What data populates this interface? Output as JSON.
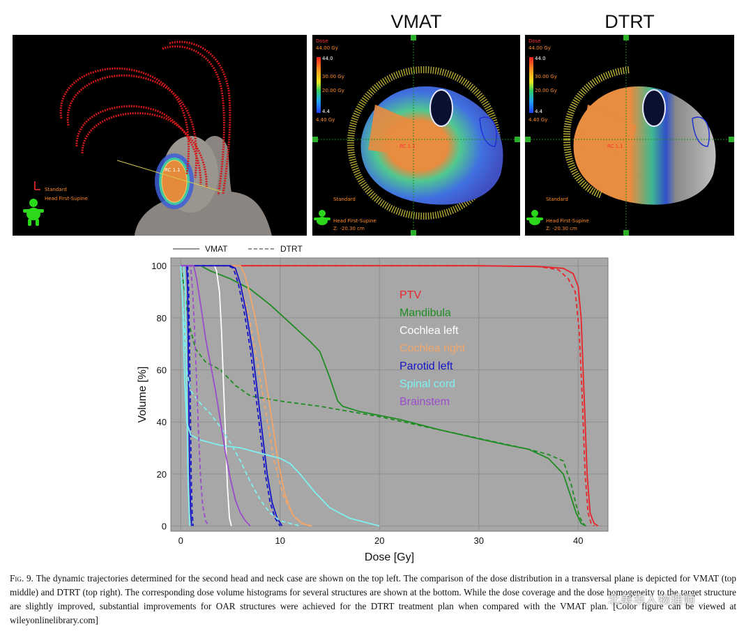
{
  "panels": {
    "vmat_title": "VMAT",
    "dtrt_title": "DTRT",
    "left": {
      "tag": "RC 1.1",
      "orientation": "Standard",
      "position": "Head First-Supine"
    },
    "vmat": {
      "dose_unit": "Dose",
      "max_box": "44.00 Gy",
      "max": "44.0",
      "level1": "30.00 Gy",
      "level2": "20.00 Gy",
      "min": "4.4",
      "min_box": "4.40 Gy",
      "tag": "RC 1.1",
      "orientation": "Standard",
      "position": "Head First-Supine",
      "z": "Z: -20.30 cm"
    },
    "dtrt": {
      "dose_unit": "Dose",
      "max_box": "44.00 Gy",
      "max": "44.0",
      "level1": "30.00 Gy",
      "level2": "20.00 Gy",
      "min": "4.4",
      "min_box": "4.40 Gy",
      "tag": "RC 1.1",
      "orientation": "Standard",
      "position": "Head First-Supine",
      "z": "Z: -20.30 cm"
    }
  },
  "chart_data": {
    "type": "line",
    "xlabel": "Dose [Gy]",
    "ylabel": "Volume [%]",
    "xlim": [
      -1,
      43
    ],
    "ylim": [
      -2,
      103
    ],
    "xticks": [
      0,
      10,
      20,
      30,
      40
    ],
    "yticks": [
      0,
      20,
      40,
      60,
      80,
      100
    ],
    "grid": true,
    "legend_top": [
      {
        "label": "VMAT",
        "style": "solid"
      },
      {
        "label": "DTRT",
        "style": "dashed"
      }
    ],
    "legend_inside": [
      {
        "label": "PTV",
        "color": "#e8252a"
      },
      {
        "label": "Mandibula",
        "color": "#1f8c23"
      },
      {
        "label": "Cochlea left",
        "color": "#ffffff"
      },
      {
        "label": "Cochlea right",
        "color": "#f2a66a"
      },
      {
        "label": "Parotid left",
        "color": "#1414c8"
      },
      {
        "label": "Spinal cord",
        "color": "#7ef0f0"
      },
      {
        "label": "Brainstem",
        "color": "#9a4ccc"
      }
    ],
    "series": [
      {
        "name": "PTV",
        "plan": "VMAT",
        "color": "#e8252a",
        "points": [
          [
            0,
            100
          ],
          [
            30,
            100
          ],
          [
            36,
            99.7
          ],
          [
            38.5,
            99
          ],
          [
            39.5,
            97
          ],
          [
            40,
            92
          ],
          [
            40.3,
            80
          ],
          [
            40.6,
            50
          ],
          [
            40.9,
            20
          ],
          [
            41.2,
            5
          ],
          [
            41.6,
            1
          ],
          [
            42,
            0
          ]
        ]
      },
      {
        "name": "PTV",
        "plan": "DTRT",
        "color": "#e8252a",
        "points": [
          [
            0,
            100
          ],
          [
            30,
            100
          ],
          [
            36,
            99.7
          ],
          [
            38,
            98.5
          ],
          [
            39,
            95
          ],
          [
            39.7,
            90
          ],
          [
            40.1,
            75
          ],
          [
            40.4,
            50
          ],
          [
            40.7,
            20
          ],
          [
            41,
            5
          ],
          [
            41.3,
            1
          ],
          [
            41.6,
            0
          ]
        ]
      },
      {
        "name": "Mandibula",
        "plan": "VMAT",
        "color": "#1f8c23",
        "points": [
          [
            0,
            100
          ],
          [
            2,
            100
          ],
          [
            3,
            98
          ],
          [
            5,
            95
          ],
          [
            7,
            91
          ],
          [
            9,
            85
          ],
          [
            11,
            78
          ],
          [
            13,
            71
          ],
          [
            14,
            67
          ],
          [
            15,
            57
          ],
          [
            15.8,
            48
          ],
          [
            16.3,
            46
          ],
          [
            18,
            44
          ],
          [
            22,
            41
          ],
          [
            26,
            37
          ],
          [
            30,
            33.5
          ],
          [
            33,
            31
          ],
          [
            35,
            29.5
          ],
          [
            37,
            26
          ],
          [
            38.5,
            20
          ],
          [
            39.2,
            12
          ],
          [
            39.8,
            5
          ],
          [
            40.3,
            1
          ],
          [
            40.8,
            0
          ]
        ]
      },
      {
        "name": "Mandibula",
        "plan": "DTRT",
        "color": "#1f8c23",
        "points": [
          [
            0,
            100
          ],
          [
            0.4,
            90
          ],
          [
            0.8,
            78
          ],
          [
            1.5,
            68
          ],
          [
            2.5,
            63
          ],
          [
            4,
            60
          ],
          [
            5.5,
            54
          ],
          [
            7,
            50
          ],
          [
            10,
            48
          ],
          [
            14,
            46
          ],
          [
            20,
            42
          ],
          [
            26,
            37
          ],
          [
            32,
            32
          ],
          [
            35,
            29.5
          ],
          [
            37,
            27.5
          ],
          [
            38.5,
            25
          ],
          [
            39.3,
            16
          ],
          [
            39.8,
            8
          ],
          [
            40.2,
            3
          ],
          [
            40.7,
            0
          ]
        ]
      },
      {
        "name": "Cochlea left",
        "plan": "VMAT",
        "color": "#ffffff",
        "points": [
          [
            0,
            100
          ],
          [
            3.4,
            100
          ],
          [
            3.6,
            98
          ],
          [
            3.9,
            90
          ],
          [
            4.1,
            75
          ],
          [
            4.3,
            55
          ],
          [
            4.5,
            35
          ],
          [
            4.7,
            15
          ],
          [
            4.9,
            3
          ],
          [
            5.1,
            0
          ]
        ]
      },
      {
        "name": "Cochlea right",
        "plan": "VMAT",
        "color": "#f2a66a",
        "points": [
          [
            0,
            100
          ],
          [
            6,
            100
          ],
          [
            6.4,
            97
          ],
          [
            6.9,
            90
          ],
          [
            7.5,
            80
          ],
          [
            8.2,
            65
          ],
          [
            9,
            45
          ],
          [
            9.8,
            25
          ],
          [
            10.5,
            12
          ],
          [
            11.3,
            4
          ],
          [
            12.2,
            1
          ],
          [
            13,
            0
          ]
        ]
      },
      {
        "name": "Cochlea right",
        "plan": "DTRT",
        "color": "#f2a66a",
        "points": [
          [
            0,
            100
          ],
          [
            5.2,
            100
          ],
          [
            5.6,
            97
          ],
          [
            6.2,
            90
          ],
          [
            6.9,
            80
          ],
          [
            7.6,
            65
          ],
          [
            8.5,
            45
          ],
          [
            9.4,
            25
          ],
          [
            10.3,
            12
          ],
          [
            11.3,
            4
          ],
          [
            12.3,
            1
          ],
          [
            13.2,
            0
          ]
        ]
      },
      {
        "name": "Parotid left",
        "plan": "VMAT",
        "color": "#1414c8",
        "points": [
          [
            0,
            100
          ],
          [
            5,
            100
          ],
          [
            5.5,
            99
          ],
          [
            6,
            93
          ],
          [
            6.6,
            82
          ],
          [
            7.2,
            68
          ],
          [
            7.7,
            52
          ],
          [
            8.2,
            36
          ],
          [
            8.7,
            20
          ],
          [
            9.2,
            9
          ],
          [
            9.7,
            3
          ],
          [
            10.2,
            0
          ]
        ]
      },
      {
        "name": "Parotid left",
        "plan": "DTRT",
        "color": "#1414c8",
        "points": [
          [
            0,
            100
          ],
          [
            4.8,
            100
          ],
          [
            5.3,
            99
          ],
          [
            5.8,
            93
          ],
          [
            6.4,
            82
          ],
          [
            7,
            68
          ],
          [
            7.5,
            52
          ],
          [
            8,
            36
          ],
          [
            8.5,
            20
          ],
          [
            9,
            9
          ],
          [
            9.5,
            3
          ],
          [
            10,
            0
          ]
        ]
      },
      {
        "name": "Parotid left",
        "plan": "VMAT",
        "color": "#1414c8",
        "points": [
          [
            0,
            100
          ],
          [
            0.6,
            100
          ],
          [
            0.7,
            90
          ],
          [
            0.8,
            50
          ],
          [
            0.9,
            20
          ],
          [
            1,
            5
          ],
          [
            1.1,
            0
          ]
        ]
      },
      {
        "name": "Parotid left",
        "plan": "DTRT",
        "color": "#1414c8",
        "points": [
          [
            0,
            100
          ],
          [
            0.7,
            100
          ],
          [
            0.8,
            90
          ],
          [
            0.95,
            50
          ],
          [
            1.05,
            20
          ],
          [
            1.15,
            5
          ],
          [
            1.25,
            0
          ]
        ]
      },
      {
        "name": "Spinal cord",
        "plan": "VMAT",
        "color": "#7ef0f0",
        "points": [
          [
            0,
            100
          ],
          [
            0.2,
            85
          ],
          [
            0.4,
            55
          ],
          [
            0.6,
            40
          ],
          [
            1,
            35
          ],
          [
            2,
            33
          ],
          [
            4,
            31
          ],
          [
            6,
            30
          ],
          [
            8,
            28
          ],
          [
            10,
            26
          ],
          [
            11,
            24
          ],
          [
            12,
            20
          ],
          [
            13.5,
            13
          ],
          [
            15,
            7
          ],
          [
            17,
            3
          ],
          [
            19,
            1
          ],
          [
            20,
            0
          ]
        ]
      },
      {
        "name": "Spinal cord",
        "plan": "DTRT",
        "color": "#7ef0f0",
        "points": [
          [
            0,
            100
          ],
          [
            0.3,
            80
          ],
          [
            0.6,
            60
          ],
          [
            1,
            52
          ],
          [
            2,
            47
          ],
          [
            3,
            43
          ],
          [
            4,
            38
          ],
          [
            5,
            32
          ],
          [
            6,
            25
          ],
          [
            7,
            17
          ],
          [
            8,
            10
          ],
          [
            9,
            5
          ],
          [
            10,
            2
          ],
          [
            11,
            1
          ],
          [
            12,
            0
          ]
        ]
      },
      {
        "name": "Spinal cord",
        "plan": "VMAT",
        "color": "#7ef0f0",
        "points": [
          [
            0,
            100
          ],
          [
            0.3,
            100
          ],
          [
            0.45,
            90
          ],
          [
            0.6,
            50
          ],
          [
            0.75,
            15
          ],
          [
            0.9,
            0
          ]
        ]
      },
      {
        "name": "Brainstem",
        "plan": "VMAT",
        "color": "#9a4ccc",
        "points": [
          [
            0,
            100
          ],
          [
            1.3,
            100
          ],
          [
            1.6,
            95
          ],
          [
            2,
            85
          ],
          [
            2.5,
            72
          ],
          [
            3,
            62
          ],
          [
            3.5,
            52
          ],
          [
            4,
            40
          ],
          [
            4.5,
            28
          ],
          [
            5,
            18
          ],
          [
            5.5,
            10
          ],
          [
            6,
            5
          ],
          [
            6.5,
            2
          ],
          [
            7,
            0
          ]
        ]
      },
      {
        "name": "Brainstem",
        "plan": "DTRT",
        "color": "#9a4ccc",
        "points": [
          [
            0,
            100
          ],
          [
            1,
            100
          ],
          [
            1.2,
            90
          ],
          [
            1.4,
            75
          ],
          [
            1.6,
            55
          ],
          [
            1.8,
            35
          ],
          [
            2,
            18
          ],
          [
            2.2,
            8
          ],
          [
            2.5,
            2
          ],
          [
            2.8,
            0
          ]
        ]
      }
    ]
  },
  "caption": {
    "fig": "Fig. 9.",
    "text": " The dynamic trajectories determined for the second head and neck case are shown on the top left. The comparison of the dose distribution in a transversal plane is depicted for VMAT (top middle) and DTRT (top right). The corresponding dose volume histograms for several structures are shown at the bottom. While the dose coverage and the dose homogeneity to the target structure are slightly improved, substantial improvements for OAR structures were achieved for the DTRT treatment plan when compared with the VMAT plan. [Color figure can be viewed at wileyonlinelibrary.com]"
  },
  "watermark": "北美华人物理师"
}
